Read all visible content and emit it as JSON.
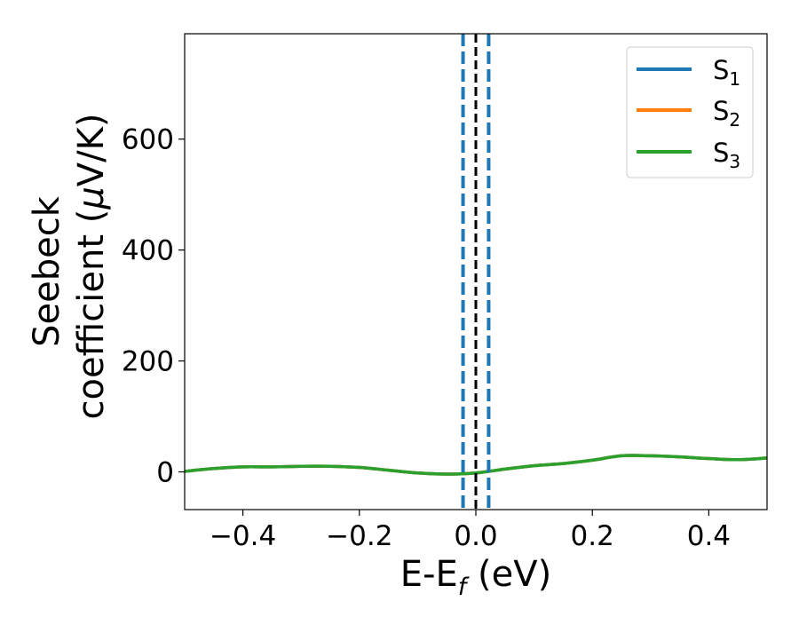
{
  "chart_data": {
    "type": "line",
    "title": "",
    "xlabel": "E-E",
    "xlabel_sub": "f",
    "xlabel_suffix": " (eV)",
    "ylabel_line1": "Seebeck",
    "ylabel_line2": "coefficient  (",
    "ylabel_mu": "μ",
    "ylabel_line2_suffix": "V/K)",
    "xlim": [
      -0.5,
      0.5
    ],
    "ylim": [
      -68,
      790
    ],
    "xticks": [
      -0.4,
      -0.2,
      0.0,
      0.2,
      0.4
    ],
    "xtick_labels": [
      "−0.4",
      "−0.2",
      "0.0",
      "0.2",
      "0.4"
    ],
    "yticks": [
      0,
      200,
      400,
      600
    ],
    "ytick_labels": [
      "0",
      "200",
      "400",
      "600"
    ],
    "grid": false,
    "legend_position": "top-right",
    "series": [
      {
        "name": "S",
        "sub": "1",
        "color": "#1f77b4",
        "x": [
          -0.5,
          -0.45,
          -0.4,
          -0.35,
          -0.3,
          -0.25,
          -0.2,
          -0.15,
          -0.1,
          -0.05,
          0.0,
          0.05,
          0.1,
          0.15,
          0.2,
          0.25,
          0.3,
          0.35,
          0.4,
          0.45,
          0.5
        ],
        "values": [
          1,
          6,
          9,
          9,
          10,
          10,
          8,
          3,
          -2,
          -4,
          -2,
          5,
          11,
          15,
          21,
          29,
          29,
          27,
          24,
          22,
          25
        ]
      },
      {
        "name": "S",
        "sub": "2",
        "color": "#ff7f0e",
        "x": [
          -0.5,
          -0.45,
          -0.4,
          -0.35,
          -0.3,
          -0.25,
          -0.2,
          -0.15,
          -0.1,
          -0.05,
          0.0,
          0.05,
          0.1,
          0.15,
          0.2,
          0.25,
          0.3,
          0.35,
          0.4,
          0.45,
          0.5
        ],
        "values": [
          1,
          6,
          9,
          9,
          10,
          10,
          8,
          3,
          -2,
          -4,
          -2,
          5,
          11,
          15,
          21,
          29,
          29,
          27,
          24,
          22,
          25
        ]
      },
      {
        "name": "S",
        "sub": "3",
        "color": "#2ca02c",
        "x": [
          -0.5,
          -0.45,
          -0.4,
          -0.35,
          -0.3,
          -0.25,
          -0.2,
          -0.15,
          -0.1,
          -0.05,
          0.0,
          0.05,
          0.1,
          0.15,
          0.2,
          0.25,
          0.3,
          0.35,
          0.4,
          0.45,
          0.5
        ],
        "values": [
          1,
          6,
          9,
          9,
          10,
          10,
          8,
          3,
          -2,
          -4,
          -2,
          5,
          11,
          15,
          21,
          29,
          29,
          27,
          24,
          22,
          25
        ]
      }
    ],
    "vlines": [
      {
        "x": -0.022,
        "color": "#1f77b4",
        "style": "dashed"
      },
      {
        "x": 0.022,
        "color": "#1f77b4",
        "style": "dashed"
      },
      {
        "x": 0.0,
        "color": "#000000",
        "style": "dashed"
      }
    ]
  }
}
